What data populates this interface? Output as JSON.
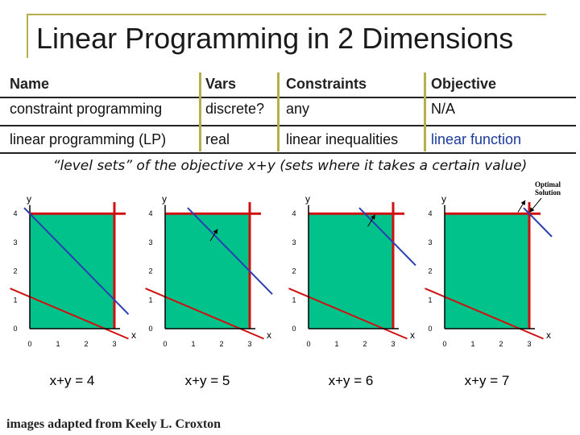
{
  "header": {
    "title": "Linear Programming in 2 Dimensions"
  },
  "table": {
    "columns": [
      "Name",
      "Vars",
      "Constraints",
      "Objective"
    ],
    "rows": [
      [
        "constraint programming",
        "discrete?",
        "any",
        "N/A"
      ],
      [
        "linear programming (LP)",
        "real",
        "linear inequalities",
        "linear function"
      ]
    ]
  },
  "caption": "“level sets” of the objective x+y (sets where it takes a certain value)",
  "plots": {
    "x_label": "x",
    "y_label": "y",
    "x_ticks": [
      "0",
      "1",
      "2",
      "3"
    ],
    "y_ticks": [
      "0",
      "1",
      "2",
      "3",
      "4"
    ],
    "levels": [
      "x+y = 4",
      "x+y = 5",
      "x+y = 6",
      "x+y = 7"
    ],
    "annotation": "Optimal Solution"
  },
  "footer": {
    "credit": "images adapted from Keely L. Croxton"
  }
}
